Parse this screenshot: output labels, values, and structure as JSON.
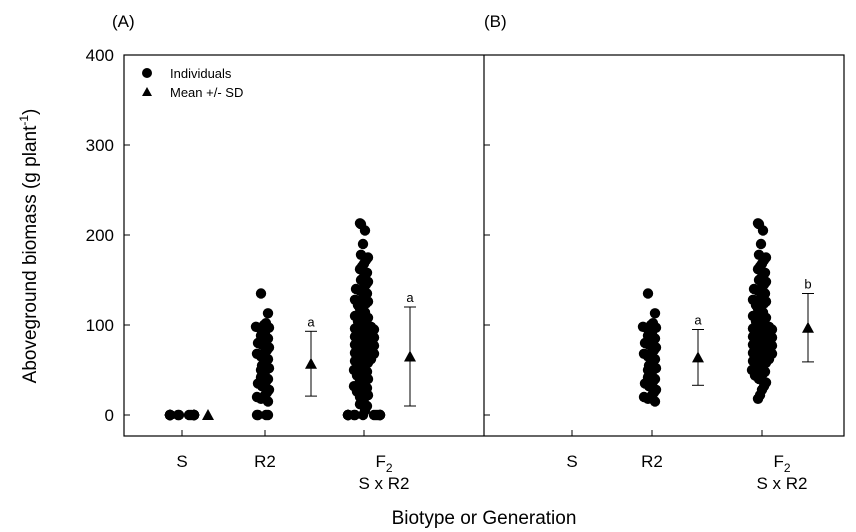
{
  "chart_data": {
    "type": "scatter",
    "xlabel": "Biotype or Generation",
    "ylabel_main": "Aboveground biomass (g plant",
    "ylabel_sup": "-1",
    "ylabel_tail": ")",
    "ylim": [
      0,
      400
    ],
    "yticks": [
      "0",
      "100",
      "200",
      "300",
      "400"
    ],
    "legend": {
      "position": "top-left",
      "entries": [
        {
          "name": "Individuals",
          "marker": "circle"
        },
        {
          "name": "Mean +/- SD",
          "marker": "triangle"
        }
      ]
    },
    "categories": [
      {
        "main": "S",
        "sub": ""
      },
      {
        "main": "R2",
        "sub": ""
      },
      {
        "main": "F",
        "main_sub": "2",
        "sub": "S x R2"
      }
    ],
    "panels": [
      {
        "label": "(A)",
        "groups": [
          {
            "category": "S",
            "individuals": [
              0,
              0,
              0,
              0,
              0,
              0,
              0,
              0,
              0,
              0,
              0,
              0,
              0,
              0,
              0,
              0,
              0,
              0,
              0,
              0,
              0,
              0,
              0,
              0,
              0,
              0,
              0,
              0,
              0,
              0
            ],
            "mean": 0,
            "sd": 0,
            "sig": ""
          },
          {
            "category": "R2",
            "individuals": [
              135,
              113,
              102,
              100,
              98,
              97,
              95,
              92,
              90,
              88,
              85,
              82,
              80,
              78,
              75,
              72,
              70,
              68,
              65,
              62,
              60,
              57,
              55,
              52,
              50,
              48,
              45,
              42,
              40,
              37,
              35,
              32,
              28,
              25,
              22,
              20,
              18,
              15,
              0,
              0,
              0,
              0
            ],
            "mean": 57,
            "sd": 36,
            "sig": "a"
          },
          {
            "category": "F2",
            "individuals": [
              213,
              212,
              205,
              190,
              178,
              175,
              172,
              168,
              165,
              162,
              158,
              155,
              152,
              150,
              148,
              145,
              142,
              140,
              138,
              135,
              133,
              130,
              128,
              126,
              124,
              122,
              120,
              118,
              116,
              114,
              112,
              110,
              108,
              106,
              104,
              102,
              100,
              99,
              98,
              97,
              96,
              95,
              94,
              93,
              92,
              91,
              90,
              89,
              88,
              87,
              86,
              85,
              84,
              83,
              82,
              81,
              80,
              79,
              78,
              77,
              76,
              75,
              74,
              73,
              72,
              71,
              70,
              69,
              68,
              67,
              66,
              65,
              64,
              63,
              62,
              61,
              60,
              58,
              56,
              54,
              52,
              50,
              48,
              46,
              44,
              42,
              40,
              38,
              36,
              34,
              32,
              30,
              28,
              26,
              24,
              22,
              20,
              18,
              15,
              12,
              10,
              5,
              0,
              0,
              0,
              0,
              0,
              0,
              0,
              0,
              0,
              0,
              0,
              0,
              0,
              0,
              0,
              0
            ],
            "mean": 65,
            "sd": 55,
            "sig": "a"
          }
        ]
      },
      {
        "label": "(B)",
        "groups": [
          {
            "category": "R2",
            "individuals": [
              135,
              113,
              102,
              100,
              98,
              97,
              95,
              92,
              90,
              88,
              85,
              82,
              80,
              78,
              75,
              72,
              70,
              68,
              65,
              62,
              60,
              57,
              55,
              52,
              50,
              48,
              45,
              42,
              40,
              37,
              35,
              32,
              28,
              25,
              22,
              20,
              18,
              15
            ],
            "mean": 64,
            "sd": 31,
            "sig": "a"
          },
          {
            "category": "F2",
            "individuals": [
              213,
              212,
              205,
              190,
              178,
              175,
              172,
              168,
              165,
              162,
              158,
              155,
              152,
              150,
              148,
              145,
              142,
              140,
              138,
              135,
              133,
              130,
              128,
              126,
              124,
              122,
              120,
              118,
              116,
              114,
              112,
              110,
              108,
              106,
              104,
              102,
              100,
              99,
              98,
              97,
              96,
              95,
              94,
              93,
              92,
              91,
              90,
              89,
              88,
              87,
              86,
              85,
              84,
              83,
              82,
              81,
              80,
              79,
              78,
              77,
              76,
              75,
              74,
              73,
              72,
              71,
              70,
              69,
              68,
              67,
              66,
              65,
              64,
              63,
              62,
              61,
              60,
              58,
              56,
              54,
              52,
              50,
              48,
              46,
              44,
              40,
              36,
              32,
              28,
              22,
              18
            ],
            "mean": 97,
            "sd": 38,
            "sig": "b"
          }
        ]
      }
    ]
  }
}
